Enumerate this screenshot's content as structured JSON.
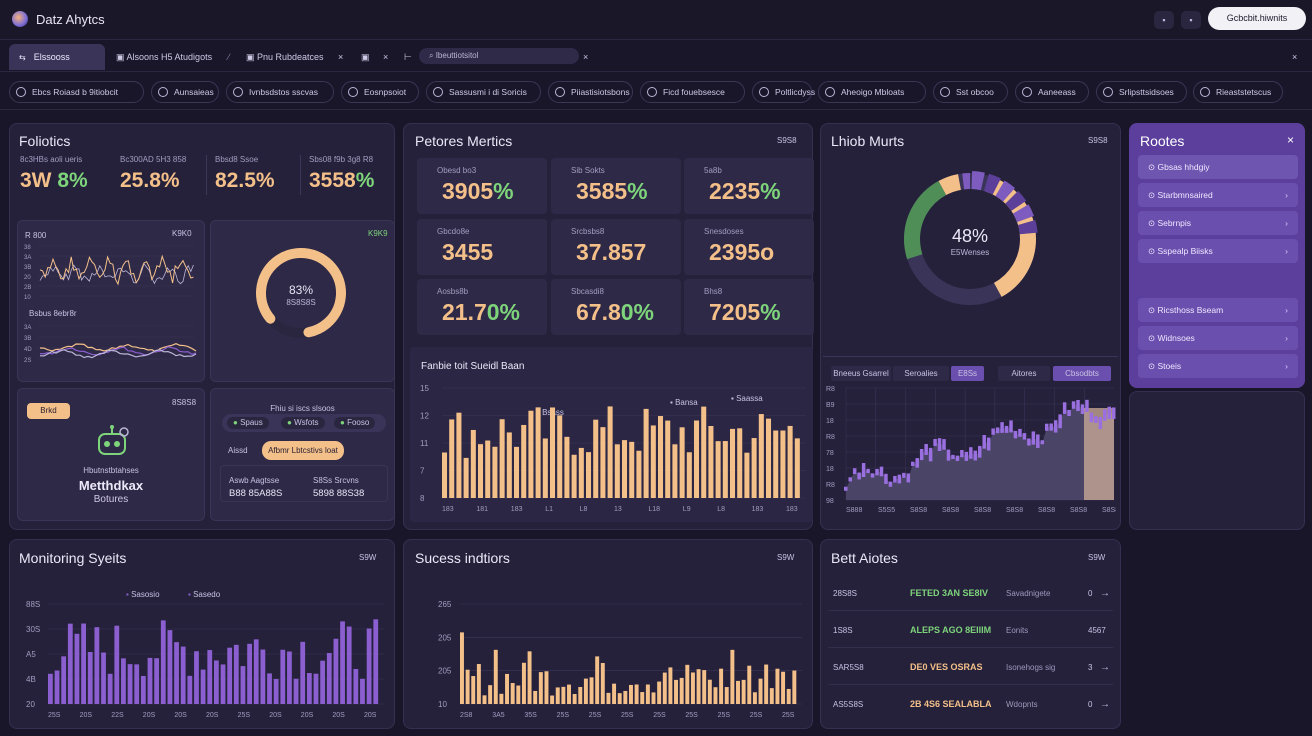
{
  "app": {
    "title": "Datz Ahytcs",
    "top_button": "Gcbcbit.hiwnits",
    "icon_a": "▪",
    "icon_b": "▪"
  },
  "tabs": [
    {
      "label": "Elssooss"
    },
    {
      "label": "Alsoons H5 Atudigots"
    },
    {
      "label": "Pnu Rubdeatces"
    },
    {
      "label": "Ibeuttiotsitol"
    }
  ],
  "chips": [
    "Ebcs Roiasd b 9itiobcit",
    "Aunsaieas",
    "Ivnbsdstos sscvas",
    "Eosnpsoiot",
    "Sassusmi i di Soricis",
    "Piiastisiotsbons",
    "Ficd fouebsesce",
    "Poltlicdyss",
    "Aheoigo Mbloats",
    "Sst obcoo",
    "Aaneeass",
    "Srlipsttsidsoes",
    "Rieaststetscus"
  ],
  "colors": {
    "accent_orange": "#f4c08a",
    "accent_green": "#7ed47b",
    "accent_purple": "#8b5fd0",
    "panel": "#25213b"
  },
  "foliotics": {
    "title": "Foliotics",
    "stats": [
      {
        "label": "8c3HBs aoli ueris",
        "value": "3W",
        "green": " 8%"
      },
      {
        "label": "Bc300AD 5H3 858",
        "value": "25.8%",
        "green": ""
      },
      {
        "label": "Bbsd8 Ssoe",
        "value": "82.5%",
        "green": ""
      },
      {
        "label": "Sbs08 f9b 3g8 R8",
        "value": "3558",
        "green": "%"
      }
    ],
    "mini_a_label": "R 800",
    "mini_a_corner": "K9K0",
    "mini_b_label": "Bsbus 8ebr8r",
    "mini_a_ticks": [
      "38",
      "3A",
      "3B",
      "20",
      "2B",
      "10"
    ],
    "mini_b_ticks": [
      "3A",
      "3B",
      "4D",
      "2S"
    ],
    "donut_value": "83%",
    "donut_sub": "8S8S8S",
    "donut_corner": "K9K9",
    "donut_fraction": 0.83,
    "badge_label": "Brkd",
    "card_corner": "8S8S8",
    "card_sub": "Hbutnstbtahses",
    "card_title": "Metthdkax",
    "card_caption": "Botures",
    "ctrl_caption": "Fhiu si iscs slsoos",
    "pills": [
      "Spaus",
      "Wsfots",
      "Fooso"
    ],
    "pill_label": "Aissd",
    "pill_highlight": "Afbmr Lbtcstivs loat",
    "row_a_k": "Aswb Aagtsse",
    "row_a_v": "B88 85A88S",
    "row_b_k": "S8Ss Srcvns",
    "row_b_v": "5898 88S38"
  },
  "perf": {
    "title": "Petores Mertics",
    "corner": "S9S8",
    "cells": [
      {
        "label": "Obesd bo3",
        "value": "3905",
        "green": "%"
      },
      {
        "label": "Sib Sokts",
        "value": "3585",
        "green": "%"
      },
      {
        "label": "5a8b",
        "value": "2235",
        "green": "%"
      },
      {
        "label": "Gbcdo8e",
        "value": "3455",
        "green": ""
      },
      {
        "label": "Srcbsbs8",
        "value": "37.857",
        "green": ""
      },
      {
        "label": "Snesdoses",
        "value": "2395o",
        "green": ""
      },
      {
        "label": "Aosbs8b",
        "value": "21.7",
        "green": "0%"
      },
      {
        "label": "Sbcasdi8",
        "value": "67.8",
        "green": "0%"
      },
      {
        "label": "Bhs8",
        "value": "7205",
        "green": "%"
      }
    ],
    "chart_title": "Fanbie toit Sueidl Baan",
    "leg_a": "Bsass",
    "leg_b": "Bansa",
    "leg_c": "Saassa",
    "yt": [
      "15",
      "12",
      "11",
      "7",
      "8"
    ],
    "xt": [
      "183",
      "181",
      "183",
      "L1",
      "L8",
      "13",
      "L18",
      "L9",
      "L8",
      "183",
      "183"
    ]
  },
  "latest": {
    "title": "Lhiob Murts",
    "corner": "S9S8",
    "donut_value": "48%",
    "donut_sub": "E5Wenses",
    "tabs": [
      "Bneeus Gsarrel",
      "Seroalies",
      "E8Ss",
      "Aitores",
      "Cbsodbts"
    ],
    "yt": [
      "R8",
      "B9",
      "18",
      "R8",
      "78",
      "18",
      "R8",
      "98"
    ],
    "xt": [
      "S888",
      "S5S5",
      "S8S8",
      "S8S8",
      "S8S8",
      "S8S8",
      "S8S8",
      "S8S8",
      "S8S8"
    ]
  },
  "routes": {
    "title": "Rootes",
    "close": "×",
    "items": [
      "Gbsas hhdgiy",
      "Starbmnsaired",
      "Sebrnpis",
      "Sspealp Biisks",
      "Ricsthoss Bseam",
      "Widnsoes",
      "Stoeis"
    ]
  },
  "monitoring": {
    "title": "Monitoring Syeits",
    "corner": "S9W",
    "leg_a": "Sasosio",
    "leg_b": "Sasedo",
    "yt": [
      "88S",
      "30S",
      "A5",
      "4B",
      "20"
    ],
    "xt": [
      "25S",
      "20S",
      "22S",
      "20S",
      "20S",
      "20S",
      "25S",
      "20S",
      "20S",
      "20S",
      "20S"
    ]
  },
  "success": {
    "title": "Sucess indtiors",
    "corner": "S9W",
    "yt": [
      "265",
      "205",
      "205",
      "10"
    ],
    "xt": [
      "2S8",
      "3A5",
      "35S",
      "25S",
      "25S",
      "25S",
      "25S",
      "25S",
      "25S",
      "25S",
      "25S"
    ]
  },
  "best": {
    "title": "Bett Aiotes",
    "corner": "S9W",
    "rows": [
      {
        "id": "28S8S",
        "name": "FETED 3AN SE8IV",
        "desc": "Savadnigete",
        "val": "0",
        "arrow": "→",
        "color": "#7ed47b"
      },
      {
        "id": "1S8S",
        "name": "ALEPS AGO 8EIIIM",
        "desc": "Eonits",
        "val": "4567",
        "arrow": "",
        "color": "#7ed47b"
      },
      {
        "id": "SAR5S8",
        "name": "DE0 VES OSRAS",
        "desc": "Isonehogs sig",
        "val": "3",
        "arrow": "→",
        "color": "#f4c08a"
      },
      {
        "id": "AS5S8S",
        "name": "2B 4S6 SEALABLA",
        "desc": "Wdopnts",
        "val": "0",
        "arrow": "→",
        "color": "#f4c08a"
      }
    ]
  }
}
